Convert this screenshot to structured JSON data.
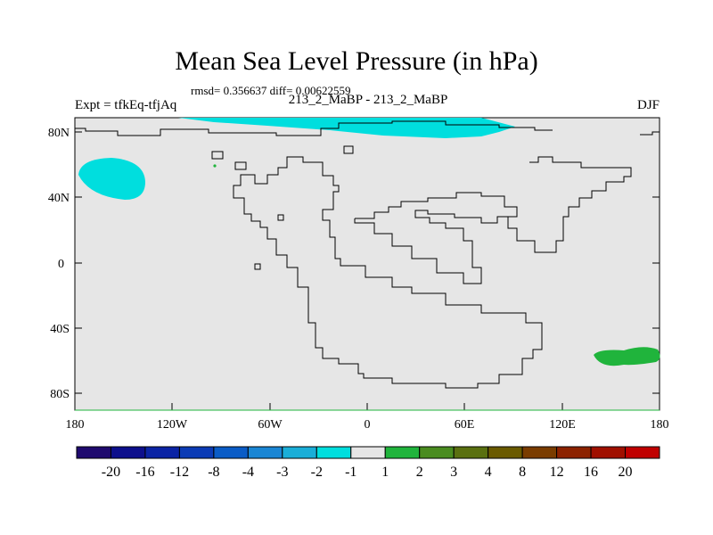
{
  "title": "Mean Sea Level Pressure (in hPa)",
  "stats_line": "rmsd= 0.356637 diff= 0.00622559",
  "left_label": "Expt = tfkEq-tfjAq",
  "center_label": "213_2_MaBP - 213_2_MaBP",
  "right_label": "DJF",
  "y_ticks": [
    "80N",
    "40N",
    "0",
    "40S",
    "80S"
  ],
  "x_ticks": [
    "180",
    "120W",
    "60W",
    "0",
    "60E",
    "120E",
    "180"
  ],
  "colorbar": {
    "labels": [
      "-20",
      "-16",
      "-12",
      "-8",
      "-4",
      "-3",
      "-2",
      "-1",
      "1",
      "2",
      "3",
      "4",
      "8",
      "12",
      "16",
      "20"
    ],
    "colors": [
      "#1f0a6e",
      "#0d0f8c",
      "#0b24a5",
      "#0b3bb5",
      "#0a5cc6",
      "#1a86d4",
      "#1aaed8",
      "#00dede",
      "#e6e6e6",
      "#20b43c",
      "#4a8c20",
      "#5a7010",
      "#6a5a00",
      "#7a3c00",
      "#8c2200",
      "#a01000",
      "#c00000"
    ]
  },
  "colors": {
    "background": "#e6e6e6",
    "negative_anomaly": "#00dede",
    "positive_anomaly": "#20b43c"
  }
}
